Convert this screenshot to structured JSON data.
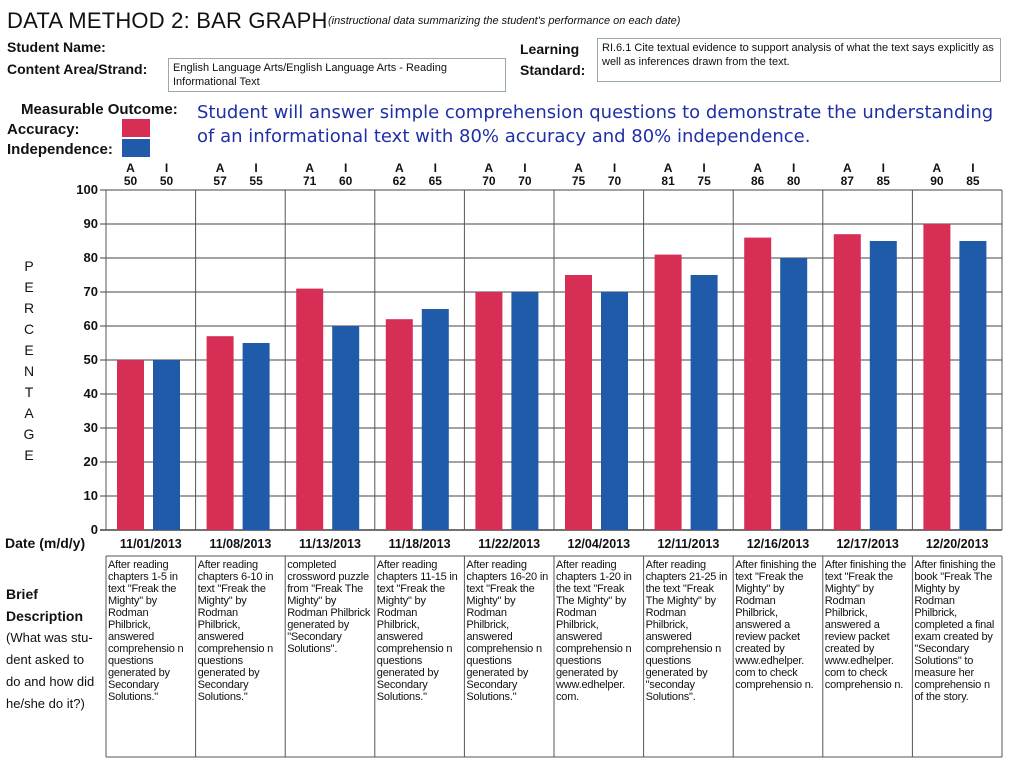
{
  "header": {
    "title": "DATA METHOD 2: BAR GRAPH",
    "subtitle": "(instructional data summarizing the student's performance on each date)",
    "student_name_label": "Student Name:",
    "content_area_label": "Content Area/Strand:",
    "content_area_value": "English Language Arts/English Language Arts - Reading Informational Text",
    "learning_label": "Learning",
    "standard_label": "Standard:",
    "standard_value": "RI.6.1 Cite textual evidence to support analysis of what the text says explicitly as well as inferences drawn from the text."
  },
  "outcome": {
    "label": "Measurable Outcome:",
    "accuracy_label": "Accuracy:",
    "independence_label": "Independence:",
    "text": "Student will answer simple comprehension questions to demonstrate the understanding of an informational text with 80% accuracy and 80% independence."
  },
  "colors": {
    "accuracy": "#d62e55",
    "independence": "#1f5ba8",
    "grid": "#444444"
  },
  "axis": {
    "ylabel_letters": [
      "P",
      "E",
      "R",
      "C",
      "E",
      "N",
      "T",
      "A",
      "G",
      "E"
    ],
    "date_label": "Date (m/d/y)",
    "ticks": [
      "0",
      "10",
      "20",
      "30",
      "40",
      "50",
      "60",
      "70",
      "80",
      "90",
      "100"
    ]
  },
  "brief_label": [
    "Brief",
    "Description",
    "(What was stu-",
    "dent asked to",
    "do and how did",
    "he/she do it?)"
  ],
  "col_head": {
    "a": "A",
    "i": "I"
  },
  "chart_data": {
    "type": "bar",
    "ylim": [
      0,
      100
    ],
    "grid": true,
    "categories": [
      "11/01/2013",
      "11/08/2013",
      "11/13/2013",
      "11/18/2013",
      "11/22/2013",
      "12/04/2013",
      "12/11/2013",
      "12/16/2013",
      "12/17/2013",
      "12/20/2013"
    ],
    "series": [
      {
        "name": "Accuracy",
        "values": [
          50,
          57,
          71,
          62,
          70,
          75,
          81,
          86,
          87,
          90
        ]
      },
      {
        "name": "Independence",
        "values": [
          50,
          55,
          60,
          65,
          70,
          70,
          75,
          80,
          85,
          85
        ]
      }
    ],
    "descriptions": [
      "After reading chapters 1-5 in text \"Freak the Mighty\" by Rodman Philbrick, answered comprehensio n questions generated by Secondary Solutions.\"",
      "After reading chapters 6-10 in text \"Freak the Mighty\" by Rodman Philbrick, answered comprehensio n questions generated by Secondary Solutions.\"",
      "completed crossword puzzle from \"Freak The Mighty\" by Rodman Philbrick generated by \"Secondary Solutions\".",
      "After reading chapters 11-15 in text \"Freak the Mighty\" by Rodman Philbrick, answered comprehensio n questions generated by Secondary Solutions.\"",
      "After reading chapters 16-20 in text \"Freak the Mighty\" by Rodman Philbrick, answered comprehensio n questions generated by Secondary Solutions.\"",
      "After reading chapters 1-20 in the text \"Freak The Mighty\" by Rodman Philbrick, answered comprehensio n questions generated by www.edhelper. com.",
      "After reading chapters 21-25 in the text \"Freak The Mighty\" by Rodman Philbrick, answered comprehensio n questions generated by \"seconday Solutions\".",
      "After finishing the text \"Freak the Mighty\" by Rodman Philbrick, answered a review packet created by www.edhelper. com to check comprehensio n.",
      "After finishing the text \"Freak the Mighty\" by Rodman Philbrick, answered a review packet created by www.edhelper. com to check comprehensio n.",
      "After finishing the book \"Freak The Mighty by Rodman Philbrick, completed a final exam created by \"Secondary Solutions\" to measure her comprehensio n of the story."
    ]
  }
}
